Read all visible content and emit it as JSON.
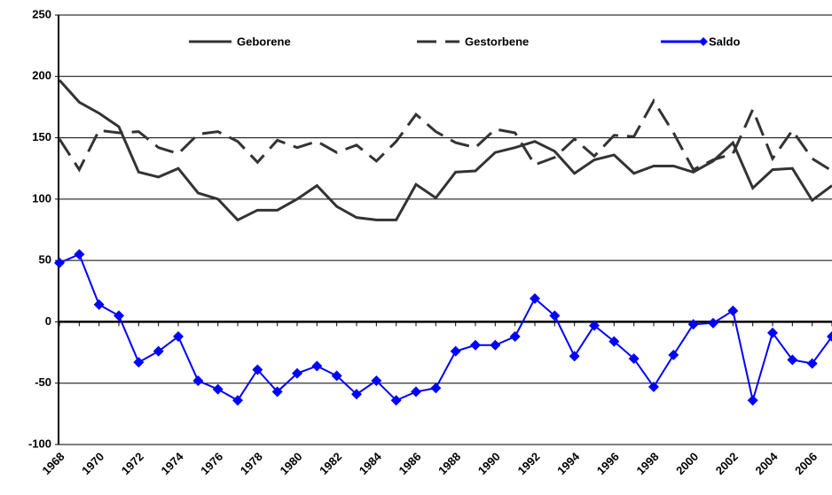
{
  "chart_data": {
    "type": "line",
    "categories": [
      1968,
      null,
      1970,
      null,
      1972,
      null,
      1974,
      null,
      1976,
      null,
      1978,
      null,
      1980,
      null,
      1982,
      null,
      1984,
      null,
      1986,
      null,
      1988,
      null,
      1990,
      null,
      1992,
      null,
      1994,
      null,
      1996,
      null,
      1998,
      null,
      2000,
      null,
      2002,
      null,
      2004,
      null,
      2006,
      null
    ],
    "series": [
      {
        "name": "Geborene",
        "color": "#333333",
        "dash": false,
        "marker": false,
        "values": [
          197,
          179,
          170,
          159,
          122,
          118,
          125,
          105,
          100,
          83,
          91,
          91,
          100,
          111,
          94,
          85,
          83,
          83,
          112,
          101,
          122,
          123,
          138,
          142,
          147,
          139,
          121,
          132,
          136,
          121,
          127,
          127,
          122,
          131,
          146,
          109,
          124,
          125,
          99,
          111
        ]
      },
      {
        "name": "Gestorbene",
        "color": "#333333",
        "dash": true,
        "marker": false,
        "values": [
          149,
          124,
          156,
          154,
          155,
          142,
          137,
          153,
          155,
          147,
          130,
          148,
          142,
          147,
          138,
          144,
          131,
          147,
          169,
          155,
          146,
          142,
          157,
          154,
          128,
          134,
          149,
          135,
          152,
          151,
          180,
          154,
          124,
          132,
          137,
          173,
          133,
          156,
          133,
          123
        ]
      },
      {
        "name": "Saldo",
        "color": "#0000ff",
        "dash": false,
        "marker": true,
        "values": [
          48,
          55,
          14,
          5,
          -33,
          -24,
          -12,
          -48,
          -55,
          -64,
          -39,
          -57,
          -42,
          -36,
          -44,
          -59,
          -48,
          -64,
          -57,
          -54,
          -24,
          -19,
          -19,
          -12,
          19,
          5,
          -28,
          -3,
          -16,
          -30,
          -53,
          -27,
          -2,
          -1,
          9,
          -64,
          -9,
          -31,
          -34,
          -12
        ]
      }
    ],
    "ylim": [
      -100,
      250
    ],
    "yticks": [
      -100,
      -50,
      0,
      50,
      100,
      150,
      200,
      250
    ],
    "grid": true,
    "legend": "top"
  }
}
